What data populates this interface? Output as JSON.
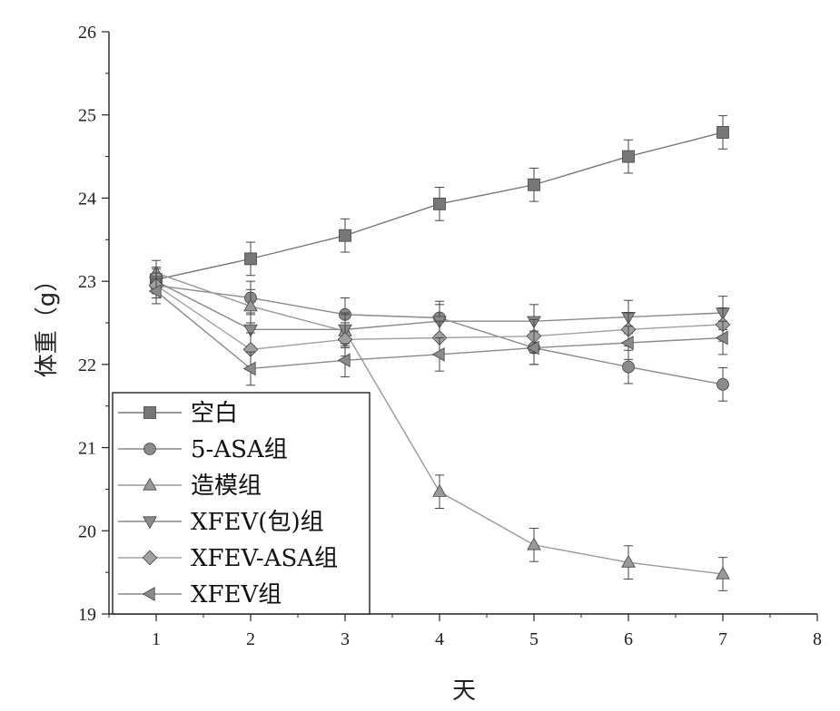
{
  "chart_data": {
    "type": "line",
    "title": "",
    "xlabel": "天",
    "ylabel": "体重（g）",
    "xlim": [
      0.5,
      8
    ],
    "ylim": [
      19,
      26
    ],
    "x_ticks": [
      1,
      2,
      3,
      4,
      5,
      6,
      7,
      8
    ],
    "y_ticks": [
      19,
      20,
      21,
      22,
      23,
      24,
      25,
      26
    ],
    "grid": false,
    "legend_position": "bottom-left",
    "x": [
      1,
      2,
      3,
      4,
      5,
      6,
      7
    ],
    "series": [
      {
        "name": "空白",
        "marker": "square",
        "color": "#777777",
        "values": [
          23.02,
          23.27,
          23.55,
          23.93,
          24.16,
          24.5,
          24.79
        ],
        "errors": [
          0.15,
          0.2,
          0.2,
          0.2,
          0.2,
          0.2,
          0.2
        ]
      },
      {
        "name": "5-ASA组",
        "marker": "circle",
        "color": "#8a8a8a",
        "values": [
          22.95,
          22.8,
          22.6,
          22.56,
          22.2,
          21.97,
          21.76
        ],
        "errors": [
          0.15,
          0.2,
          0.2,
          0.2,
          0.2,
          0.2,
          0.2
        ]
      },
      {
        "name": "造模组",
        "marker": "triangle-up",
        "color": "#999999",
        "values": [
          23.1,
          22.7,
          22.4,
          20.47,
          19.83,
          19.62,
          19.48
        ],
        "errors": [
          0.15,
          0.2,
          0.2,
          0.2,
          0.2,
          0.2,
          0.2
        ]
      },
      {
        "name": "XFEV(包)组",
        "marker": "triangle-down",
        "color": "#8a8a8a",
        "values": [
          23.0,
          22.42,
          22.42,
          22.52,
          22.52,
          22.57,
          22.62
        ],
        "errors": [
          0.15,
          0.2,
          0.2,
          0.2,
          0.2,
          0.2,
          0.2
        ]
      },
      {
        "name": "XFEV-ASA组",
        "marker": "diamond",
        "color": "#a0a0a0",
        "values": [
          22.95,
          22.18,
          22.3,
          22.32,
          22.34,
          22.42,
          22.48
        ],
        "errors": [
          0.15,
          0.2,
          0.2,
          0.2,
          0.2,
          0.2,
          0.2
        ]
      },
      {
        "name": "XFEV组",
        "marker": "triangle-left",
        "color": "#8a8a8a",
        "values": [
          22.88,
          21.95,
          22.05,
          22.12,
          22.2,
          22.26,
          22.32
        ],
        "errors": [
          0.15,
          0.2,
          0.2,
          0.2,
          0.2,
          0.2,
          0.2
        ]
      }
    ]
  }
}
